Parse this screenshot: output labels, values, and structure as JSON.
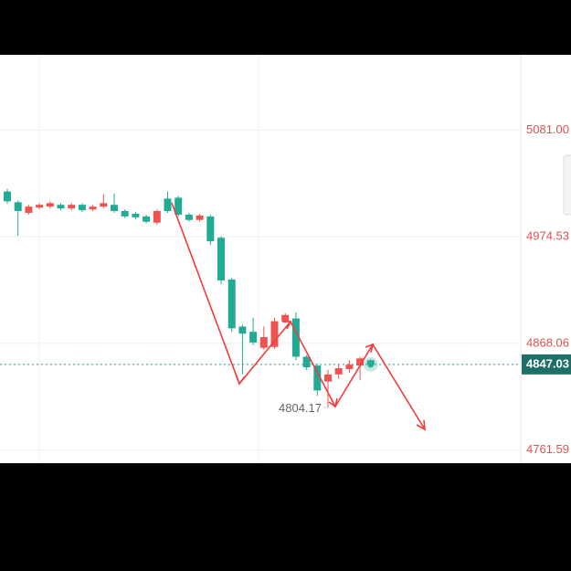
{
  "chart_data": {
    "type": "candlestick",
    "ylim": [
      4748.3,
      5156.4
    ],
    "yticks": [
      {
        "value": 5081,
        "label": "5081.00"
      },
      4974.53,
      4868.06,
      4761.59
    ],
    "grid": true,
    "up_color": "#ef5350",
    "down_color": "#22ab94",
    "series": [
      {
        "open": [
          5019.8,
          5009.1,
          4998.5,
          5003.8,
          5004.7,
          5006.5,
          5002.9,
          5006.5,
          5002.0,
          5004.7,
          5006.5,
          5000.3,
          4997.6,
          4994.9,
          4988.7,
          5012.7,
          5013.6,
          4996.7,
          4991.4,
          4994.9,
          4973.6,
          4931.9,
          4884.8,
          4879.6,
          4863.6,
          4864.5,
          4890.2,
          4892.9,
          4854.7,
          4845.9,
          4829.9,
          4837.0,
          4842.4,
          4845.9,
          4851.2
        ],
        "high": [
          5022.4,
          5010.9,
          5006.5,
          5008.2,
          5010.0,
          5008.2,
          5008.2,
          5008.2,
          5006.5,
          5017.1,
          5018.0,
          5002.0,
          4999.4,
          4996.7,
          5002.0,
          5019.8,
          5015.4,
          4998.5,
          4997.6,
          4996.7,
          4975.4,
          4933.7,
          4886.6,
          4893.8,
          4885.0,
          4893.8,
          4898.2,
          4899.1,
          4856.5,
          4847.7,
          4841.5,
          4846.8,
          4851.2,
          4854.7,
          4852.1
        ],
        "low": [
          5007.4,
          4975.4,
          4996.7,
          5002.0,
          5002.9,
          5001.1,
          5001.1,
          4999.4,
          5000.3,
          5002.9,
          4998.5,
          4993.1,
          4992.2,
          4987.8,
          4986.9,
          4998.5,
          4994.9,
          4989.6,
          4989.6,
          4966.5,
          4927.4,
          4879.6,
          4837.0,
          4866.2,
          4861.8,
          4862.7,
          4888.4,
          4851.2,
          4841.5,
          4815.7,
          4804.17,
          4832.6,
          4838.8,
          4831.6,
          4845.9
        ],
        "close": [
          5010.0,
          5000.3,
          5004.7,
          5006.5,
          5008.2,
          5002.9,
          5006.5,
          5001.1,
          5004.7,
          5008.2,
          5000.3,
          4994.9,
          4994.0,
          4989.6,
          5000.3,
          5000.3,
          4996.7,
          4991.4,
          4995.8,
          4970.1,
          4931.0,
          4883.1,
          4877.8,
          4868.9,
          4874.3,
          4890.2,
          4896.4,
          4854.7,
          4844.1,
          4821.0,
          4837.0,
          4843.2,
          4846.8,
          4853.0,
          4847.03
        ]
      }
    ],
    "low_annotation": 4804.17,
    "last_price": 4847.03
  }
}
